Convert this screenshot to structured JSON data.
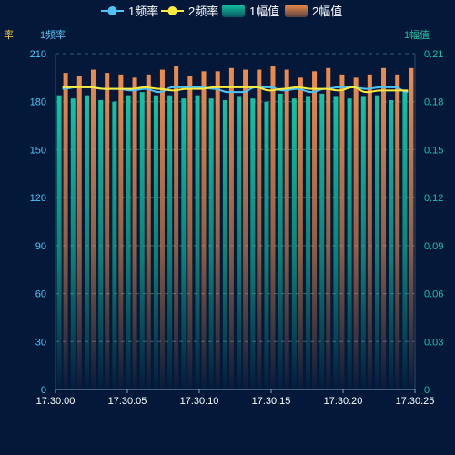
{
  "legend": [
    {
      "key": "freq1",
      "label": "1频率",
      "kind": "line",
      "color": "#4fc3f7"
    },
    {
      "key": "freq2",
      "label": "2频率",
      "kind": "line",
      "color": "#ffeb3b"
    },
    {
      "key": "amp1",
      "label": "1幅值",
      "kind": "bar",
      "color": "#13c4a3"
    },
    {
      "key": "amp2",
      "label": "2幅值",
      "kind": "bar",
      "color": "#f08c4a"
    }
  ],
  "colors": {
    "background": "#04193a",
    "left_axis": "#4fc3f7",
    "right_axis": "#13c4a3",
    "grid": "#3f5a7a",
    "x_labels": "#ffffff"
  },
  "chart_data": {
    "type": "bar",
    "left_axis": {
      "name": "1频率",
      "min": 0,
      "max": 210,
      "ticks": [
        0,
        30,
        60,
        90,
        120,
        150,
        180,
        210
      ]
    },
    "left_axis_clipped": {
      "name": "率"
    },
    "right_axis": {
      "name": "1幅值",
      "min": 0,
      "max": 0.21,
      "ticks": [
        "0",
        "0.03",
        "0.06",
        "0.09",
        "0.12",
        "0.15",
        "0.18",
        "0.21"
      ]
    },
    "x_labels": [
      "17:30:00",
      "17:30:05",
      "17:30:10",
      "17:30:15",
      "17:30:20",
      "17:30:25"
    ],
    "grid": "dashed horizontal",
    "legend_position": "top-center",
    "series": [
      {
        "name": "1幅值",
        "type": "bar",
        "axis": "right",
        "values": [
          0.184,
          0.182,
          0.184,
          0.181,
          0.18,
          0.184,
          0.186,
          0.184,
          0.184,
          0.182,
          0.184,
          0.182,
          0.181,
          0.183,
          0.182,
          0.18,
          0.185,
          0.182,
          0.183,
          0.185,
          0.183,
          0.182,
          0.183,
          0.184,
          0.181,
          0.187
        ]
      },
      {
        "name": "2幅值",
        "type": "bar",
        "axis": "right",
        "values": [
          0.198,
          0.196,
          0.2,
          0.198,
          0.197,
          0.195,
          0.197,
          0.2,
          0.202,
          0.196,
          0.199,
          0.199,
          0.201,
          0.2,
          0.2,
          0.202,
          0.2,
          0.195,
          0.199,
          0.201,
          0.197,
          0.195,
          0.197,
          0.201,
          0.197,
          0.201
        ]
      },
      {
        "name": "1频率",
        "type": "line",
        "axis": "left",
        "values": [
          188,
          189,
          189,
          188,
          188,
          187,
          188,
          186,
          189,
          189,
          189,
          188,
          186,
          186,
          189,
          189,
          187,
          188,
          186,
          188,
          189,
          189,
          188,
          189,
          189,
          186
        ]
      },
      {
        "name": "2频率",
        "type": "line",
        "axis": "left",
        "values": [
          189,
          189,
          189,
          188,
          188,
          188,
          189,
          188,
          187,
          188,
          188,
          189,
          189,
          189,
          189,
          187,
          188,
          189,
          188,
          188,
          187,
          189,
          186,
          187,
          187,
          187
        ]
      }
    ]
  }
}
